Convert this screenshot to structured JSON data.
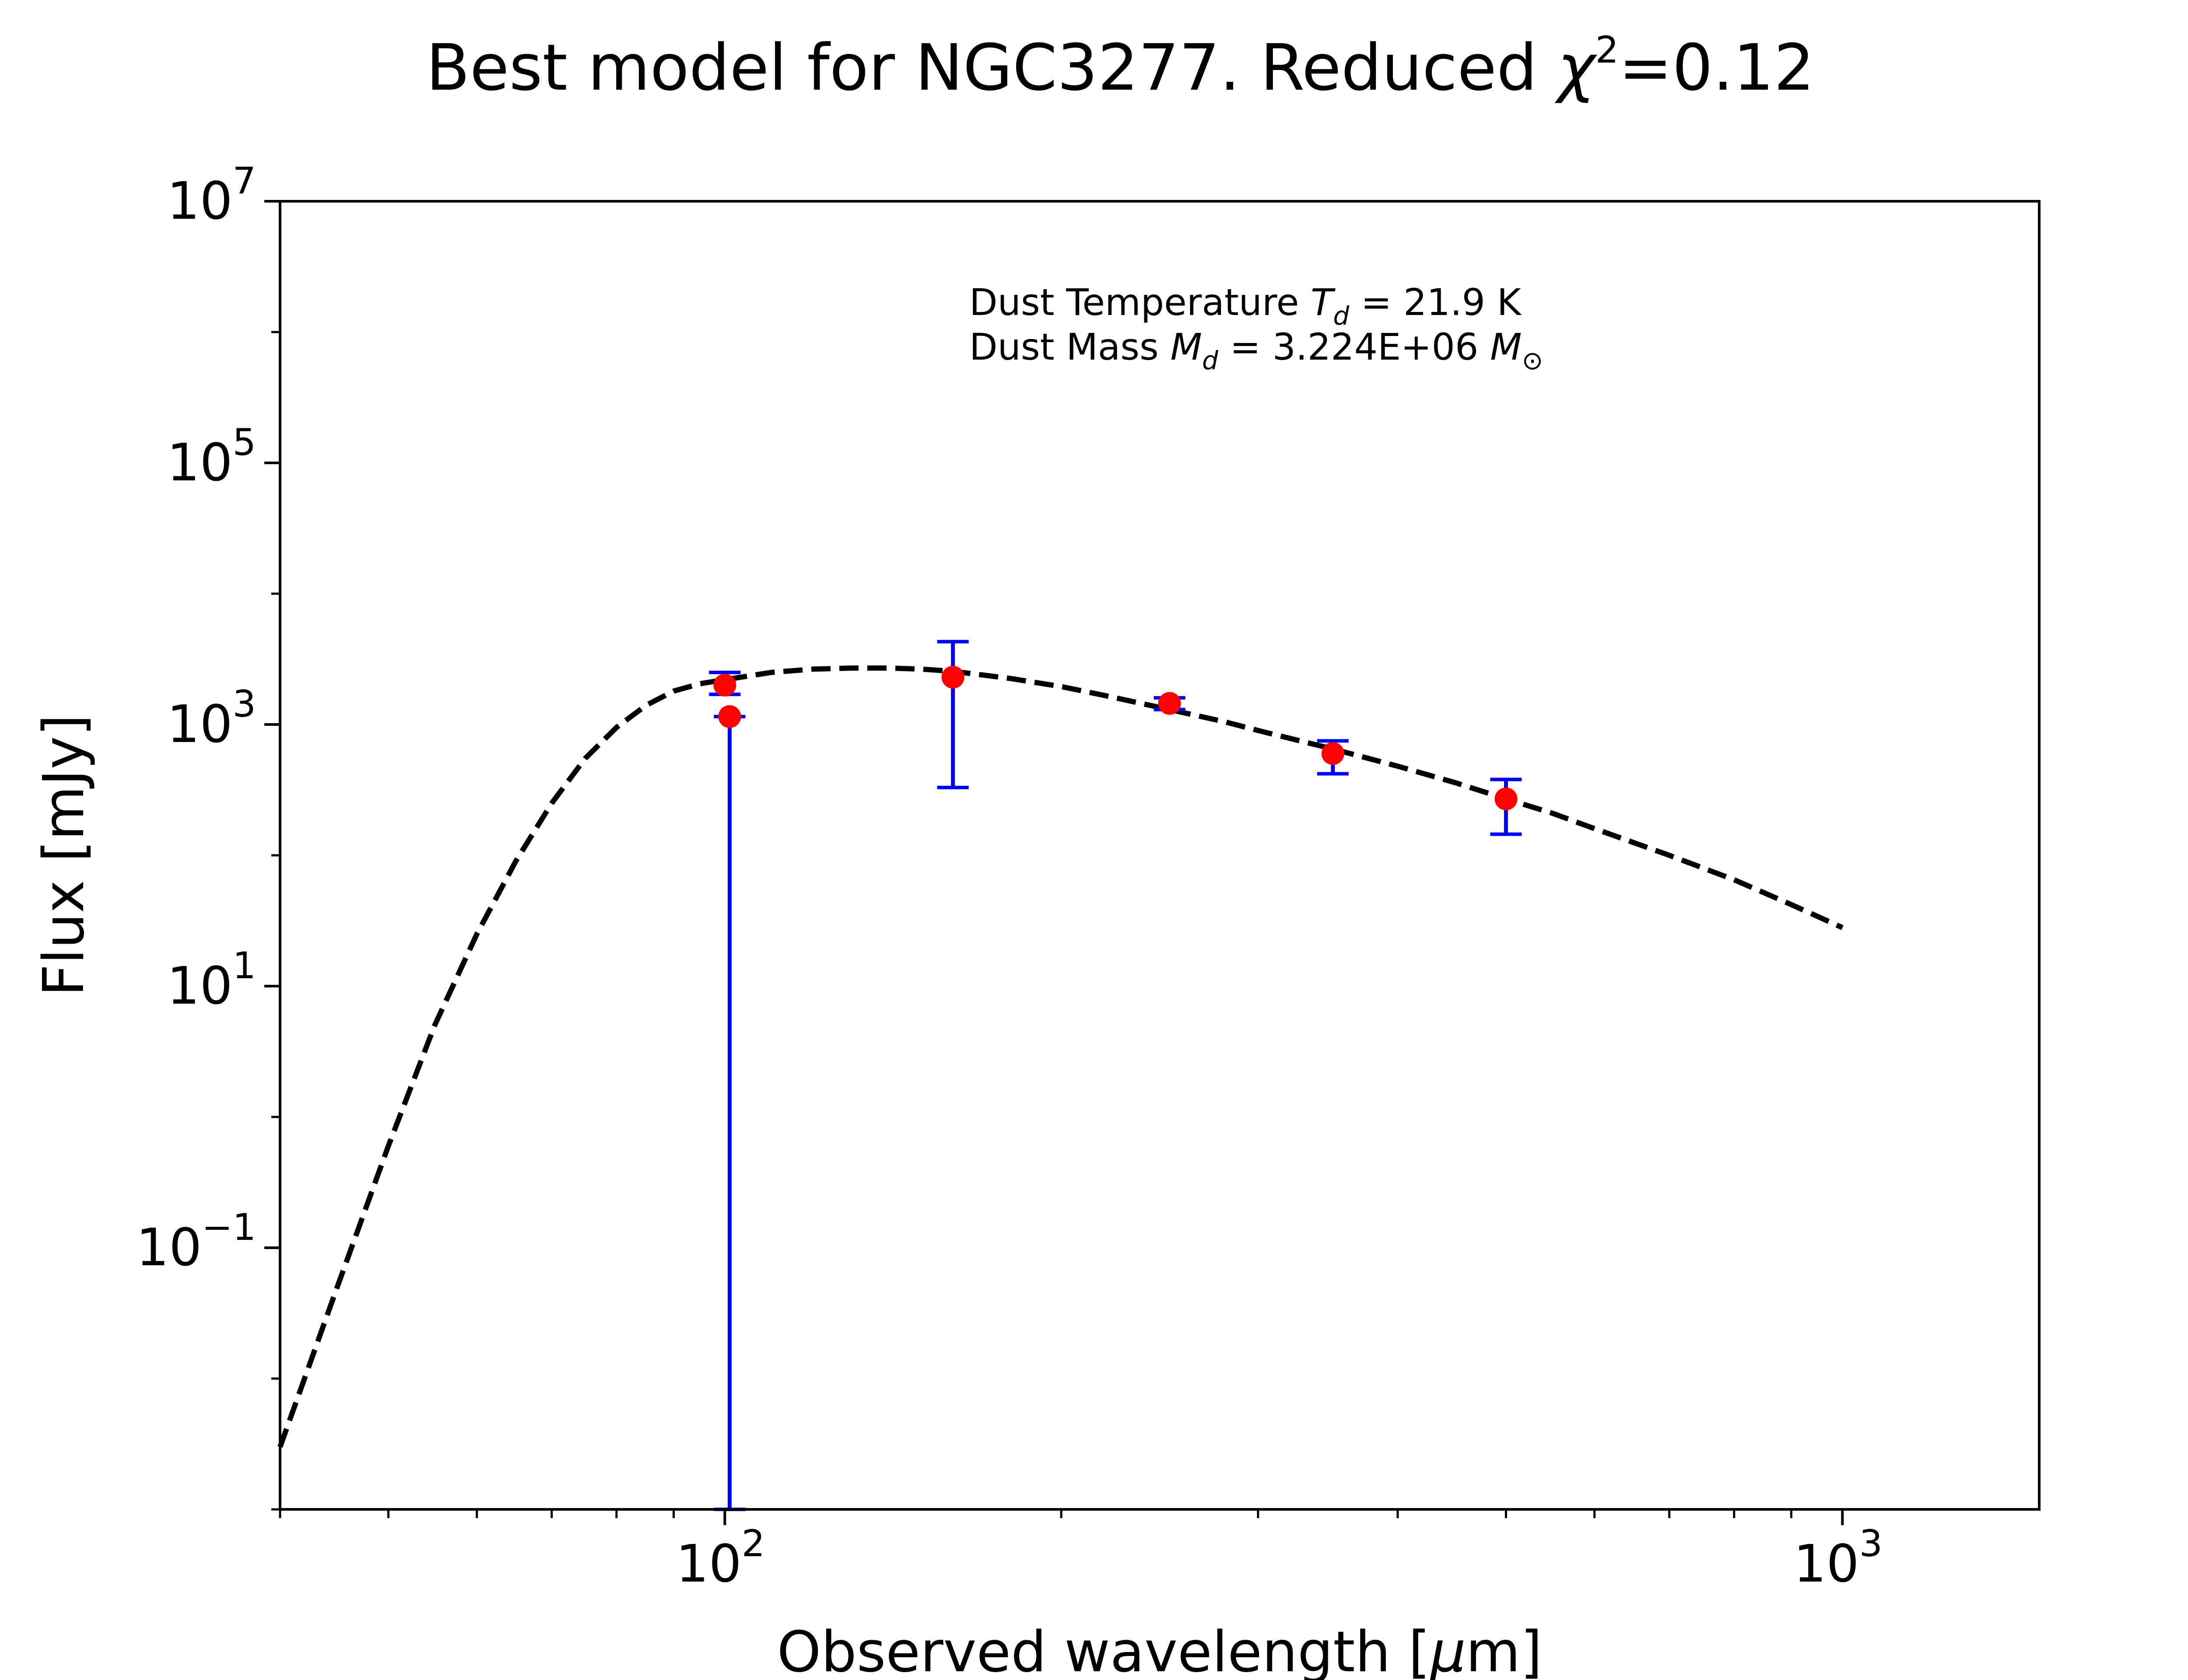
{
  "chart_data": {
    "type": "scatter",
    "title": "Best model for NGC3277. Reduced χ²=0.12",
    "title_parts": {
      "prefix": "Best model for NGC3277. Reduced ",
      "symbol": "χ",
      "exponent": "2",
      "suffix": "=0.12"
    },
    "xlabel": "Observed wavelength [μm]",
    "xlabel_parts": {
      "prefix": "Observed wavelength [",
      "mu": "μ",
      "suffix": "m]"
    },
    "ylabel": "Flux [mJy]",
    "x_scale": "log",
    "y_scale": "log",
    "xlim": [
      40,
      1500
    ],
    "ylim": [
      0.001,
      10000000
    ],
    "grid": false,
    "x_ticks": [
      {
        "base": "10",
        "exp": "2",
        "value": 100
      },
      {
        "base": "10",
        "exp": "3",
        "value": 1000
      }
    ],
    "y_ticks": [
      {
        "base": "10",
        "exp": "7",
        "value": 10000000
      },
      {
        "base": "10",
        "exp": "5",
        "value": 100000
      },
      {
        "base": "10",
        "exp": "3",
        "value": 1000
      },
      {
        "base": "10",
        "exp": "1",
        "value": 10
      },
      {
        "base": "10",
        "exp": "−1",
        "value": 0.1
      }
    ],
    "annotations": {
      "line1": {
        "prefix": "Dust Temperature ",
        "sym": "T",
        "sub": "d",
        "suffix": " = 21.9 K"
      },
      "line2": {
        "prefix": "Dust Mass ",
        "sym": "M",
        "sub": "d",
        "mid": " = 3.224E+06 ",
        "unit": "M",
        "unit_sub": "⊙"
      }
    },
    "series": [
      {
        "kind": "model",
        "style": "dashed",
        "color": "#000000",
        "x": [
          40,
          45,
          50,
          55,
          60,
          65,
          70,
          75,
          80,
          85,
          90,
          95,
          100,
          110,
          120,
          130,
          140,
          150,
          160,
          180,
          200,
          220,
          250,
          280,
          300,
          350,
          400,
          450,
          500,
          550,
          600,
          700,
          800,
          900,
          1000
        ],
        "y": [
          0.003,
          0.05,
          0.6,
          5,
          25,
          90,
          250,
          550,
          950,
          1400,
          1800,
          2050,
          2200,
          2500,
          2650,
          2700,
          2700,
          2650,
          2550,
          2250,
          1950,
          1650,
          1300,
          1050,
          900,
          650,
          480,
          360,
          270,
          210,
          160,
          100,
          65,
          42,
          28
        ]
      },
      {
        "kind": "observed",
        "marker": "circle",
        "color": "#ff0000",
        "errorbar_color": "#0000ff",
        "points": [
          {
            "x": 100,
            "y": 2000,
            "lo": 1700,
            "hi": 2500
          },
          {
            "x": 101,
            "y": 1150,
            "lo": 0.001,
            "hi": 1150
          },
          {
            "x": 160,
            "y": 2300,
            "lo": 330,
            "hi": 4300
          },
          {
            "x": 250,
            "y": 1450,
            "lo": 1300,
            "hi": 1600
          },
          {
            "x": 350,
            "y": 600,
            "lo": 420,
            "hi": 750
          },
          {
            "x": 500,
            "y": 270,
            "lo": 145,
            "hi": 380
          }
        ]
      }
    ]
  }
}
